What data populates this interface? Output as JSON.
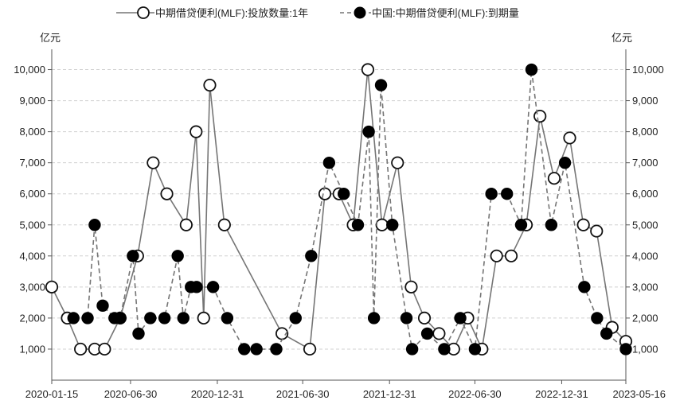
{
  "chart_data": {
    "type": "line",
    "title": "",
    "unit_left": "亿元",
    "unit_right": "亿元",
    "ylim": [
      0,
      10500
    ],
    "yticks": [
      1000,
      2000,
      3000,
      4000,
      5000,
      6000,
      7000,
      8000,
      9000,
      10000
    ],
    "ytick_labels": [
      "1,000",
      "2,000",
      "3,000",
      "4,000",
      "5,000",
      "6,000",
      "7,000",
      "8,000",
      "9,000",
      "10,000"
    ],
    "xticks": [
      {
        "x": "2020-01-15",
        "label": "2020-01-15"
      },
      {
        "x": "2020-06-30",
        "label": "2020-06-30"
      },
      {
        "x": "2020-12-31",
        "label": "2020-12-31"
      },
      {
        "x": "2021-06-30",
        "label": "2021-06-30"
      },
      {
        "x": "2021-12-31",
        "label": "2021-12-31"
      },
      {
        "x": "2022-06-30",
        "label": "2022-06-30"
      },
      {
        "x": "2022-12-31",
        "label": "2022-12-31"
      },
      {
        "x": "2023-05-16",
        "label": "2023-05-16"
      }
    ],
    "grid": "horizontal dashed",
    "legend_position": "top",
    "series": [
      {
        "name": "中期借贷便利(MLF):投放数量:1年",
        "marker": "hollow-circle",
        "line_style": "solid",
        "color": "#757575",
        "points": [
          {
            "x": "2020-01-15",
            "y": 3000
          },
          {
            "x": "2020-02-17",
            "y": 2000
          },
          {
            "x": "2020-03-16",
            "y": 1000
          },
          {
            "x": "2020-04-15",
            "y": 1000
          },
          {
            "x": "2020-05-06",
            "y": 1000
          },
          {
            "x": "2020-06-08",
            "y": 2000
          },
          {
            "x": "2020-07-15",
            "y": 4000
          },
          {
            "x": "2020-08-17",
            "y": 7000
          },
          {
            "x": "2020-09-15",
            "y": 6000
          },
          {
            "x": "2020-10-26",
            "y": 5000
          },
          {
            "x": "2020-11-16",
            "y": 8000
          },
          {
            "x": "2020-12-02",
            "y": 2000
          },
          {
            "x": "2020-12-15",
            "y": 9500
          },
          {
            "x": "2021-01-15",
            "y": 5000
          },
          {
            "x": "2021-05-17",
            "y": 1500
          },
          {
            "x": "2021-07-15",
            "y": 1000
          },
          {
            "x": "2021-08-16",
            "y": 6000
          },
          {
            "x": "2021-09-15",
            "y": 6000
          },
          {
            "x": "2021-10-15",
            "y": 5000
          },
          {
            "x": "2021-11-15",
            "y": 10000
          },
          {
            "x": "2021-12-15",
            "y": 5000
          },
          {
            "x": "2022-01-17",
            "y": 7000
          },
          {
            "x": "2022-02-15",
            "y": 3000
          },
          {
            "x": "2022-03-15",
            "y": 2000
          },
          {
            "x": "2022-04-15",
            "y": 1500
          },
          {
            "x": "2022-05-16",
            "y": 1000
          },
          {
            "x": "2022-06-15",
            "y": 2000
          },
          {
            "x": "2022-07-15",
            "y": 1000
          },
          {
            "x": "2022-08-15",
            "y": 4000
          },
          {
            "x": "2022-09-15",
            "y": 4000
          },
          {
            "x": "2022-10-17",
            "y": 5000
          },
          {
            "x": "2022-11-15",
            "y": 8500
          },
          {
            "x": "2022-12-15",
            "y": 6500
          },
          {
            "x": "2023-01-17",
            "y": 7800
          },
          {
            "x": "2023-02-15",
            "y": 5000
          },
          {
            "x": "2023-03-15",
            "y": 4800
          },
          {
            "x": "2023-04-17",
            "y": 1700
          },
          {
            "x": "2023-05-16",
            "y": 1250
          }
        ]
      },
      {
        "name": "中国:中期借贷便利(MLF):到期量",
        "marker": "filled-circle",
        "line_style": "dashed",
        "color": "#757575",
        "points": [
          {
            "x": "2020-03-01",
            "y": 2000
          },
          {
            "x": "2020-03-31",
            "y": 2000
          },
          {
            "x": "2020-04-15",
            "y": 5000
          },
          {
            "x": "2020-05-02",
            "y": 2400
          },
          {
            "x": "2020-05-27",
            "y": 2000
          },
          {
            "x": "2020-06-08",
            "y": 2000
          },
          {
            "x": "2020-07-05",
            "y": 4000
          },
          {
            "x": "2020-07-17",
            "y": 1500
          },
          {
            "x": "2020-08-11",
            "y": 2000
          },
          {
            "x": "2020-09-10",
            "y": 2000
          },
          {
            "x": "2020-10-08",
            "y": 4000
          },
          {
            "x": "2020-10-20",
            "y": 2000
          },
          {
            "x": "2020-11-05",
            "y": 3000
          },
          {
            "x": "2020-11-17",
            "y": 3000
          },
          {
            "x": "2020-12-22",
            "y": 3000
          },
          {
            "x": "2021-01-21",
            "y": 2000
          },
          {
            "x": "2021-02-26",
            "y": 1000
          },
          {
            "x": "2021-03-24",
            "y": 1000
          },
          {
            "x": "2021-05-05",
            "y": 1000
          },
          {
            "x": "2021-06-15",
            "y": 2000
          },
          {
            "x": "2021-07-18",
            "y": 4000
          },
          {
            "x": "2021-08-25",
            "y": 7000
          },
          {
            "x": "2021-09-25",
            "y": 6000
          },
          {
            "x": "2021-10-25",
            "y": 5000
          },
          {
            "x": "2021-11-17",
            "y": 8000
          },
          {
            "x": "2021-11-28",
            "y": 2000
          },
          {
            "x": "2021-12-13",
            "y": 9500
          },
          {
            "x": "2022-01-06",
            "y": 5000
          },
          {
            "x": "2022-02-05",
            "y": 2000
          },
          {
            "x": "2022-02-17",
            "y": 1000
          },
          {
            "x": "2022-03-21",
            "y": 1500
          },
          {
            "x": "2022-04-26",
            "y": 1000
          },
          {
            "x": "2022-05-30",
            "y": 2000
          },
          {
            "x": "2022-06-30",
            "y": 1000
          },
          {
            "x": "2022-08-04",
            "y": 6000
          },
          {
            "x": "2022-09-06",
            "y": 6000
          },
          {
            "x": "2022-10-06",
            "y": 5000
          },
          {
            "x": "2022-10-28",
            "y": 10000
          },
          {
            "x": "2022-12-09",
            "y": 5000
          },
          {
            "x": "2023-01-07",
            "y": 7000
          },
          {
            "x": "2023-02-17",
            "y": 3000
          },
          {
            "x": "2023-03-16",
            "y": 2000
          },
          {
            "x": "2023-04-05",
            "y": 1500
          },
          {
            "x": "2023-05-16",
            "y": 1000
          }
        ]
      }
    ]
  }
}
